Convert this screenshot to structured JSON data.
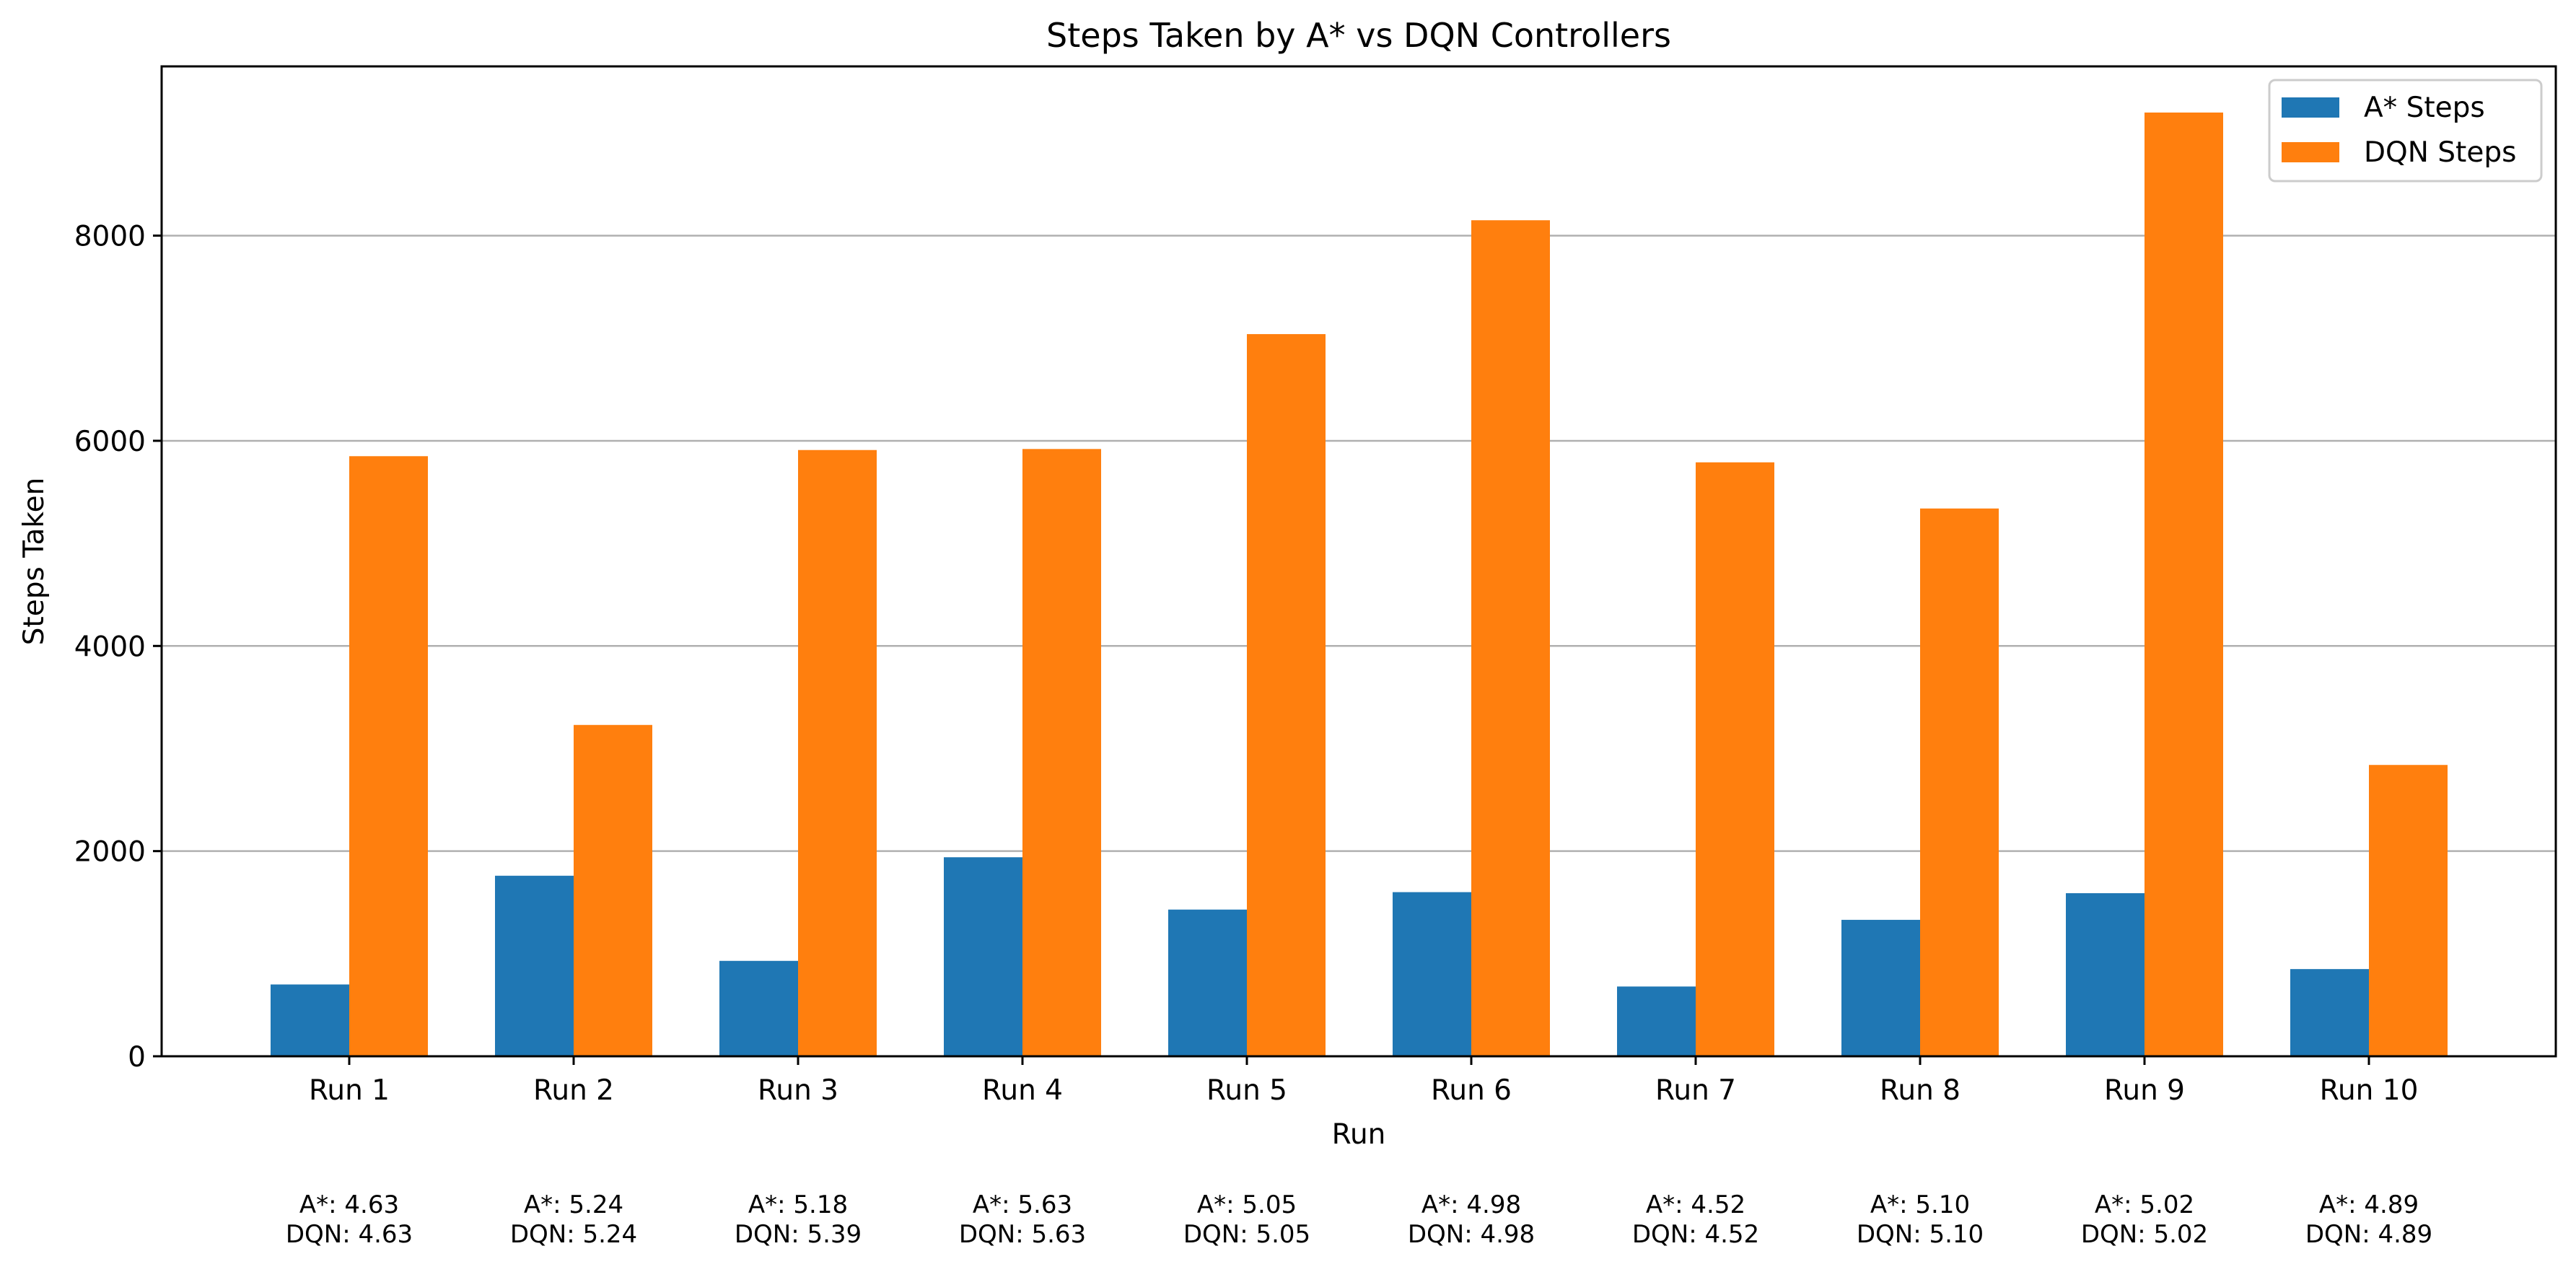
{
  "chart_data": {
    "type": "bar",
    "title": "Steps Taken by A* vs DQN Controllers",
    "xlabel": "Run",
    "ylabel": "Steps Taken",
    "ylim": [
      0,
      9650
    ],
    "yticks": [
      0,
      2000,
      4000,
      6000,
      8000
    ],
    "grid": "y",
    "legend_position": "top-right",
    "categories": [
      "Run 1",
      "Run 2",
      "Run 3",
      "Run 4",
      "Run 5",
      "Run 6",
      "Run 7",
      "Run 8",
      "Run 9",
      "Run 10"
    ],
    "series": [
      {
        "name": "A* Steps",
        "color": "#1f77b4",
        "values": [
          700,
          1760,
          930,
          1940,
          1430,
          1600,
          680,
          1330,
          1590,
          850
        ]
      },
      {
        "name": "DQN Steps",
        "color": "#ff7f0e",
        "values": [
          5850,
          3230,
          5910,
          5920,
          7040,
          8150,
          5790,
          5340,
          9200,
          2840
        ]
      }
    ],
    "annotations": [
      {
        "astar": "A*: 4.63",
        "dqn": "DQN: 4.63"
      },
      {
        "astar": "A*: 5.24",
        "dqn": "DQN: 5.24"
      },
      {
        "astar": "A*: 5.18",
        "dqn": "DQN: 5.39"
      },
      {
        "astar": "A*: 5.63",
        "dqn": "DQN: 5.63"
      },
      {
        "astar": "A*: 5.05",
        "dqn": "DQN: 5.05"
      },
      {
        "astar": "A*: 4.98",
        "dqn": "DQN: 4.98"
      },
      {
        "astar": "A*: 4.52",
        "dqn": "DQN: 4.52"
      },
      {
        "astar": "A*: 5.10",
        "dqn": "DQN: 5.10"
      },
      {
        "astar": "A*: 5.02",
        "dqn": "DQN: 5.02"
      },
      {
        "astar": "A*: 4.89",
        "dqn": "DQN: 4.89"
      }
    ]
  }
}
